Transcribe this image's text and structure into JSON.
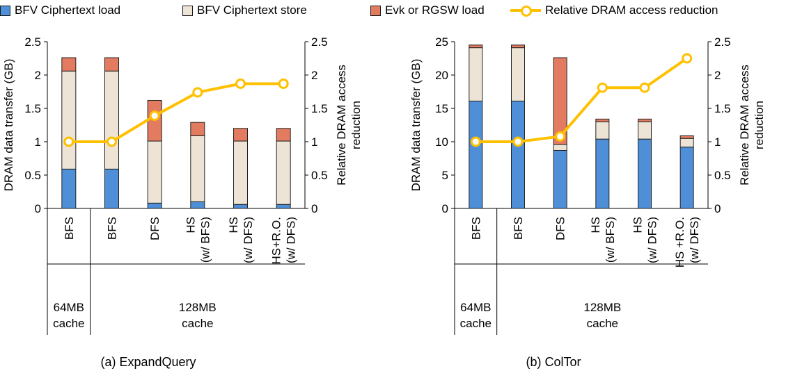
{
  "legend": [
    {
      "label": "BFV Ciphertext load",
      "color": "#4E8FD8",
      "kind": "bar"
    },
    {
      "label": "BFV Ciphertext store",
      "color": "#EDE4D6",
      "kind": "bar"
    },
    {
      "label": "Evk or RGSW load",
      "color": "#E27B5F",
      "kind": "bar"
    },
    {
      "label": "Relative DRAM access reduction",
      "color": "#FFC000",
      "kind": "line"
    }
  ],
  "chart_data": [
    {
      "type": "bar",
      "stacked": true,
      "title": "(a) ExpandQuery",
      "ylabel": "DRAM data transfer (GB)",
      "y2label": [
        "Relative DRAM access",
        "reduction"
      ],
      "ylim": [
        0,
        2.5
      ],
      "yticks": [
        "0",
        "0.5",
        "1",
        "1.5",
        "2",
        "2.5"
      ],
      "y2lim": [
        0,
        2.5
      ],
      "y2ticks": [
        "0",
        "0.5",
        "1",
        "1.5",
        "2",
        "2.5"
      ],
      "categories": [
        [
          "BFS"
        ],
        [
          "BFS"
        ],
        [
          "DFS"
        ],
        [
          "HS",
          "(w/ BFS)"
        ],
        [
          "HS",
          "(w/ DFS)"
        ],
        [
          "HS+R.O.",
          "(w/ DFS)"
        ]
      ],
      "groups": [
        {
          "label": [
            "64MB",
            "cache"
          ],
          "count": 1
        },
        {
          "label": [
            "128MB",
            "cache"
          ],
          "count": 5
        }
      ],
      "series": [
        {
          "name": "BFV Ciphertext load",
          "values": [
            0.59,
            0.59,
            0.08,
            0.1,
            0.06,
            0.06
          ]
        },
        {
          "name": "BFV Ciphertext store",
          "values": [
            1.47,
            1.47,
            0.93,
            0.99,
            0.95,
            0.95
          ]
        },
        {
          "name": "Evk or RGSW load",
          "values": [
            0.2,
            0.2,
            0.61,
            0.2,
            0.19,
            0.19
          ]
        }
      ],
      "line": {
        "name": "Relative DRAM access reduction",
        "values": [
          1.0,
          1.0,
          1.39,
          1.74,
          1.87,
          1.87
        ]
      }
    },
    {
      "type": "bar",
      "stacked": true,
      "title": "(b) ColTor",
      "ylabel": "DRAM data transfer (GB)",
      "y2label": [
        "Relative DRAM access",
        "reduction"
      ],
      "ylim": [
        0,
        25
      ],
      "yticks": [
        "0",
        "5",
        "10",
        "15",
        "20",
        "25"
      ],
      "y2lim": [
        0,
        2.5
      ],
      "y2ticks": [
        "0",
        "0.5",
        "1",
        "1.5",
        "2",
        "2.5"
      ],
      "categories": [
        [
          "BFS"
        ],
        [
          "BFS"
        ],
        [
          "DFS"
        ],
        [
          "HS",
          "(w/ BFS)"
        ],
        [
          "HS",
          "(w/ DFS)"
        ],
        [
          "HS +R.O.",
          "(w/ DFS)"
        ]
      ],
      "groups": [
        {
          "label": [
            "64MB",
            "cache"
          ],
          "count": 1
        },
        {
          "label": [
            "128MB",
            "cache"
          ],
          "count": 5
        }
      ],
      "series": [
        {
          "name": "BFV Ciphertext load",
          "values": [
            16.1,
            16.1,
            8.7,
            10.4,
            10.4,
            9.2
          ]
        },
        {
          "name": "BFV Ciphertext store",
          "values": [
            8.0,
            8.0,
            0.9,
            2.6,
            2.6,
            1.3
          ]
        },
        {
          "name": "Evk or RGSW load",
          "values": [
            0.4,
            0.4,
            13.0,
            0.4,
            0.4,
            0.4
          ]
        }
      ],
      "line": {
        "name": "Relative DRAM access reduction",
        "values": [
          1.0,
          1.0,
          1.08,
          1.81,
          1.81,
          2.25
        ]
      }
    }
  ]
}
